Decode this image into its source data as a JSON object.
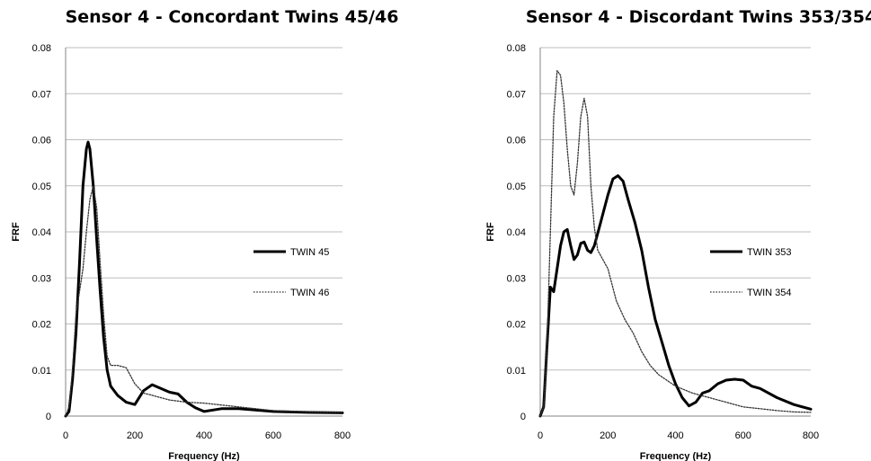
{
  "chart_data": [
    {
      "type": "line",
      "title": "Sensor 4 - Concordant Twins 45/46",
      "xlabel": "Frequency (Hz)",
      "ylabel": "FRF",
      "xlim": [
        0,
        800
      ],
      "ylim": [
        0,
        0.08
      ],
      "xticks": [
        "0",
        "200",
        "400",
        "600",
        "800"
      ],
      "yticks": [
        "0",
        "0.01",
        "0.02",
        "0.03",
        "0.04",
        "0.05",
        "0.06",
        "0.07",
        "0.08"
      ],
      "grid": "horizontal",
      "legend": "right",
      "series": [
        {
          "name": "TWIN 45",
          "style": "solid",
          "x": [
            0,
            10,
            20,
            30,
            40,
            50,
            60,
            65,
            70,
            80,
            90,
            100,
            110,
            120,
            130,
            150,
            175,
            200,
            225,
            250,
            275,
            300,
            325,
            350,
            375,
            400,
            450,
            500,
            600,
            700,
            800
          ],
          "y": [
            0,
            0.001,
            0.008,
            0.018,
            0.033,
            0.05,
            0.058,
            0.0595,
            0.058,
            0.05,
            0.038,
            0.027,
            0.017,
            0.01,
            0.0065,
            0.0045,
            0.003,
            0.0025,
            0.0055,
            0.0068,
            0.006,
            0.0052,
            0.0048,
            0.003,
            0.0018,
            0.001,
            0.0016,
            0.0016,
            0.001,
            0.0008,
            0.0007
          ]
        },
        {
          "name": "TWIN 46",
          "style": "dotted",
          "x": [
            0,
            10,
            20,
            30,
            40,
            50,
            60,
            70,
            80,
            90,
            100,
            110,
            120,
            130,
            150,
            175,
            200,
            225,
            250,
            300,
            350,
            400,
            500,
            600,
            700,
            800
          ],
          "y": [
            0,
            0.002,
            0.01,
            0.022,
            0.027,
            0.032,
            0.04,
            0.047,
            0.05,
            0.045,
            0.033,
            0.022,
            0.013,
            0.011,
            0.011,
            0.0105,
            0.007,
            0.005,
            0.0045,
            0.0035,
            0.003,
            0.0028,
            0.002,
            0.0012,
            0.0009,
            0.0008
          ]
        }
      ]
    },
    {
      "type": "line",
      "title": "Sensor 4 - Discordant Twins 353/354",
      "xlabel": "Frequency (Hz)",
      "ylabel": "FRF",
      "xlim": [
        0,
        800
      ],
      "ylim": [
        0,
        0.08
      ],
      "xticks": [
        "0",
        "200",
        "400",
        "600",
        "800"
      ],
      "yticks": [
        "0",
        "0.01",
        "0.02",
        "0.03",
        "0.04",
        "0.05",
        "0.06",
        "0.07",
        "0.08"
      ],
      "grid": "horizontal",
      "legend": "right",
      "series": [
        {
          "name": "TWIN 353",
          "style": "solid",
          "x": [
            0,
            10,
            20,
            30,
            40,
            50,
            60,
            70,
            80,
            90,
            100,
            110,
            120,
            130,
            140,
            150,
            160,
            175,
            200,
            215,
            230,
            245,
            260,
            280,
            300,
            320,
            340,
            360,
            380,
            400,
            420,
            440,
            460,
            480,
            500,
            525,
            550,
            575,
            600,
            625,
            650,
            700,
            750,
            800
          ],
          "y": [
            0,
            0.002,
            0.015,
            0.028,
            0.027,
            0.032,
            0.037,
            0.04,
            0.0405,
            0.037,
            0.034,
            0.035,
            0.0375,
            0.0378,
            0.036,
            0.0355,
            0.037,
            0.041,
            0.048,
            0.0515,
            0.0522,
            0.051,
            0.047,
            0.042,
            0.036,
            0.028,
            0.021,
            0.016,
            0.011,
            0.007,
            0.004,
            0.0022,
            0.003,
            0.005,
            0.0055,
            0.007,
            0.0078,
            0.008,
            0.0078,
            0.0065,
            0.006,
            0.004,
            0.0025,
            0.0015
          ]
        },
        {
          "name": "TWIN 354",
          "style": "dotted",
          "x": [
            0,
            10,
            20,
            30,
            40,
            50,
            60,
            70,
            80,
            90,
            100,
            110,
            120,
            130,
            140,
            150,
            160,
            170,
            200,
            225,
            250,
            275,
            300,
            325,
            350,
            400,
            450,
            500,
            550,
            600,
            650,
            700,
            750,
            800
          ],
          "y": [
            0,
            0.002,
            0.015,
            0.04,
            0.065,
            0.075,
            0.074,
            0.068,
            0.058,
            0.05,
            0.048,
            0.055,
            0.065,
            0.069,
            0.065,
            0.05,
            0.041,
            0.036,
            0.032,
            0.025,
            0.021,
            0.018,
            0.014,
            0.011,
            0.009,
            0.0065,
            0.005,
            0.004,
            0.003,
            0.002,
            0.0016,
            0.0012,
            0.0009,
            0.0008
          ]
        }
      ]
    }
  ]
}
